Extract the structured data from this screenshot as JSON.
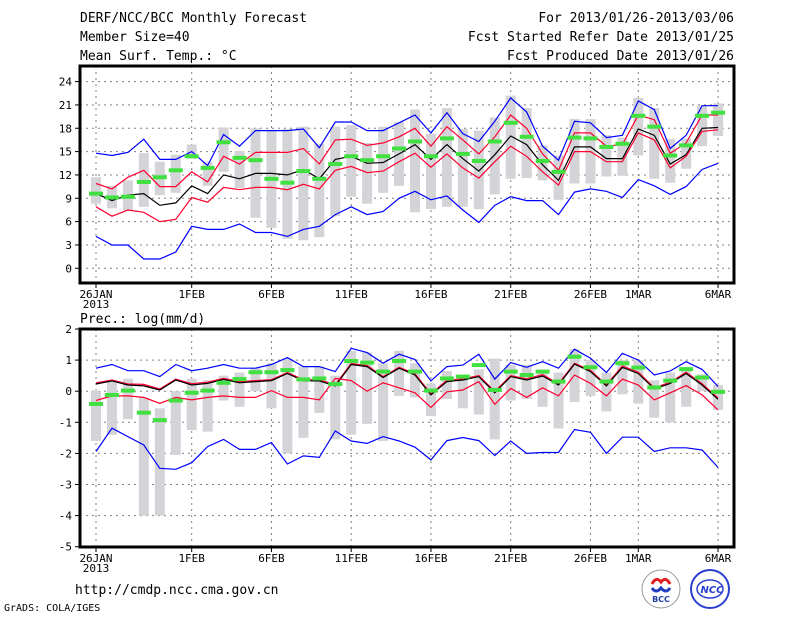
{
  "header": {
    "title": "DERF/NCC/BCC Monthly Forecast",
    "member_size": "Member Size=40",
    "variable": "Mean Surf. Temp.: °C",
    "period": "For 2013/01/26-2013/03/06",
    "refer_date": "Fcst Started Refer Date 2013/01/25",
    "produced_date": "Fcst Produced Date 2013/01/26"
  },
  "footer": {
    "url": "http://cmdp.ncc.cma.gov.cn",
    "credit": "GrADS: COLA/IGES",
    "logos": [
      "BCC",
      "NCC"
    ]
  },
  "colors": {
    "max_min": "#0000ff",
    "spread": "#ff0030",
    "mean": "#000000",
    "median": "#40e040",
    "box": "#d4d4d8",
    "grid": "#808080"
  },
  "chart_data": [
    {
      "type": "line",
      "title": "Mean Surf. Temp.: °C",
      "x_start": "2013-01-26",
      "x_tick_labels": [
        {
          "day": 0,
          "label": "26JAN",
          "sub": "2013"
        },
        {
          "day": 6,
          "label": "1FEB"
        },
        {
          "day": 11,
          "label": "6FEB"
        },
        {
          "day": 16,
          "label": "11FEB"
        },
        {
          "day": 21,
          "label": "16FEB"
        },
        {
          "day": 26,
          "label": "21FEB"
        },
        {
          "day": 31,
          "label": "26FEB"
        },
        {
          "day": 34,
          "label": "1MAR"
        },
        {
          "day": 39,
          "label": "6MAR"
        }
      ],
      "ylim": [
        -2,
        26
      ],
      "y_ticks": [
        0,
        3,
        6,
        9,
        12,
        15,
        18,
        21,
        24
      ],
      "grid": true,
      "series": [
        {
          "name": "max",
          "color": "#0000ff",
          "values": [
            14.8,
            14.5,
            14.9,
            16.6,
            14.0,
            14.0,
            15.0,
            13.2,
            17.2,
            15.7,
            17.7,
            17.7,
            17.7,
            17.9,
            15.5,
            18.8,
            18.8,
            17.7,
            17.7,
            18.7,
            19.7,
            17.4,
            20.0,
            17.3,
            16.3,
            18.9,
            21.9,
            20.1,
            15.7,
            13.9,
            18.9,
            18.7,
            16.8,
            17.1,
            21.5,
            20.4,
            15.4,
            17.1,
            20.9,
            20.9
          ]
        },
        {
          "name": "upper",
          "color": "#ff0030",
          "values": [
            10.9,
            10.2,
            11.7,
            12.6,
            10.5,
            10.5,
            12.4,
            11.1,
            14.4,
            13.4,
            14.9,
            14.9,
            14.9,
            15.4,
            13.4,
            16.5,
            16.6,
            15.8,
            16.1,
            16.9,
            18.0,
            15.7,
            18.2,
            16.5,
            14.7,
            16.9,
            19.7,
            18.0,
            14.7,
            12.6,
            17.4,
            17.4,
            15.7,
            15.9,
            19.7,
            19.1,
            14.8,
            16.1,
            19.7,
            19.7
          ]
        },
        {
          "name": "mean",
          "color": "#000000",
          "values": [
            9.6,
            8.7,
            9.4,
            9.6,
            8.1,
            8.4,
            10.6,
            9.6,
            12.0,
            11.5,
            12.2,
            12.2,
            12.0,
            12.7,
            11.5,
            14.0,
            14.4,
            13.5,
            13.6,
            14.7,
            15.9,
            14.0,
            15.9,
            14.1,
            12.5,
            14.6,
            17.0,
            15.9,
            13.3,
            11.3,
            15.6,
            15.6,
            14.1,
            14.1,
            17.9,
            17.1,
            13.4,
            14.6,
            18.0,
            18.1
          ]
        },
        {
          "name": "lower",
          "color": "#ff0030",
          "values": [
            7.9,
            6.7,
            7.5,
            7.2,
            6.0,
            6.3,
            9.1,
            8.5,
            10.4,
            10.1,
            10.4,
            10.4,
            10.1,
            10.8,
            10.2,
            12.6,
            13.1,
            12.3,
            12.5,
            13.7,
            14.8,
            13.0,
            14.7,
            12.9,
            11.6,
            13.7,
            15.7,
            14.4,
            12.4,
            10.7,
            15.0,
            15.0,
            13.7,
            13.7,
            17.4,
            16.5,
            12.9,
            14.4,
            17.6,
            17.8
          ]
        },
        {
          "name": "min",
          "color": "#0000ff",
          "values": [
            4.1,
            3.0,
            3.0,
            1.2,
            1.2,
            2.1,
            5.4,
            5.0,
            5.0,
            5.7,
            4.6,
            4.6,
            4.1,
            5.0,
            5.4,
            6.9,
            7.9,
            6.9,
            7.3,
            9.0,
            9.9,
            8.8,
            9.3,
            7.5,
            5.9,
            8.1,
            9.2,
            8.7,
            8.7,
            6.9,
            9.8,
            10.2,
            9.9,
            9.1,
            11.4,
            10.6,
            9.5,
            10.5,
            12.7,
            13.5
          ]
        },
        {
          "name": "median",
          "color": "#40e040",
          "values": [
            9.6,
            9.1,
            9.2,
            11.1,
            11.7,
            12.6,
            14.4,
            12.9,
            16.2,
            14.2,
            13.9,
            11.5,
            11.0,
            12.5,
            11.5,
            13.4,
            14.4,
            13.9,
            14.4,
            15.4,
            16.3,
            14.4,
            16.7,
            14.7,
            13.8,
            16.3,
            18.7,
            16.9,
            13.8,
            12.4,
            16.8,
            16.7,
            15.6,
            16.0,
            19.6,
            18.2,
            14.5,
            15.8,
            19.6,
            20.0
          ]
        }
      ],
      "box_low": [
        8.3,
        7.7,
        7.4,
        7.9,
        9.4,
        9.7,
        14.1,
        10.6,
        12.4,
        10.3,
        6.5,
        5.2,
        3.8,
        3.6,
        4.0,
        6.7,
        9.2,
        8.3,
        9.7,
        10.6,
        7.2,
        7.6,
        7.9,
        7.9,
        7.6,
        9.5,
        11.5,
        11.6,
        11.3,
        8.8,
        10.9,
        10.9,
        11.8,
        11.9,
        14.5,
        11.5,
        11.0,
        12.8,
        15.7,
        17.0
      ],
      "box_high": [
        11.7,
        10.6,
        11.3,
        14.8,
        13.7,
        14.6,
        15.9,
        13.7,
        18.1,
        15.1,
        18.0,
        17.8,
        17.9,
        18.2,
        16.0,
        18.2,
        18.4,
        16.1,
        18.2,
        18.8,
        20.4,
        17.3,
        20.6,
        17.9,
        17.7,
        19.4,
        22.2,
        20.6,
        15.8,
        14.5,
        19.2,
        19.2,
        17.1,
        16.8,
        21.9,
        20.6,
        16.6,
        16.7,
        20.9,
        21.2
      ]
    },
    {
      "type": "line",
      "title": "Prec.: log(mm/d)",
      "x_start": "2013-01-26",
      "x_tick_labels": [
        {
          "day": 0,
          "label": "26JAN",
          "sub": "2013"
        },
        {
          "day": 6,
          "label": "1FEB"
        },
        {
          "day": 11,
          "label": "6FEB"
        },
        {
          "day": 16,
          "label": "11FEB"
        },
        {
          "day": 21,
          "label": "16FEB"
        },
        {
          "day": 26,
          "label": "21FEB"
        },
        {
          "day": 31,
          "label": "26FEB"
        },
        {
          "day": 34,
          "label": "1MAR"
        },
        {
          "day": 39,
          "label": "6MAR"
        }
      ],
      "ylim": [
        -5,
        2
      ],
      "y_ticks": [
        -5,
        -4,
        -3,
        -2,
        -1,
        0,
        1,
        2
      ],
      "grid": true,
      "series": [
        {
          "name": "max",
          "color": "#0000ff",
          "values": [
            0.74,
            0.86,
            0.66,
            0.66,
            0.47,
            0.86,
            0.66,
            0.74,
            0.86,
            0.74,
            0.74,
            0.86,
            1.08,
            0.79,
            0.79,
            0.63,
            1.38,
            1.24,
            0.9,
            1.19,
            1.02,
            0.33,
            0.79,
            0.84,
            1.19,
            0.39,
            0.92,
            0.77,
            0.95,
            0.74,
            1.35,
            1.06,
            0.6,
            1.22,
            1.0,
            0.52,
            0.65,
            0.95,
            0.7,
            0.15
          ]
        },
        {
          "name": "upper",
          "color": "#ff0030",
          "values": [
            0.27,
            0.36,
            0.23,
            0.22,
            0.07,
            0.39,
            0.24,
            0.29,
            0.41,
            0.31,
            0.34,
            0.37,
            0.6,
            0.37,
            0.37,
            0.21,
            0.89,
            0.83,
            0.47,
            0.77,
            0.56,
            -0.08,
            0.35,
            0.4,
            0.5,
            -0.01,
            0.5,
            0.4,
            0.53,
            0.24,
            0.9,
            0.67,
            0.21,
            0.81,
            0.61,
            0.11,
            0.29,
            0.61,
            0.24,
            -0.22
          ]
        },
        {
          "name": "mean",
          "color": "#000000",
          "values": [
            0.23,
            0.33,
            0.2,
            0.17,
            0.04,
            0.36,
            0.2,
            0.25,
            0.38,
            0.27,
            0.31,
            0.34,
            0.57,
            0.33,
            0.33,
            0.17,
            0.86,
            0.79,
            0.44,
            0.74,
            0.52,
            -0.12,
            0.31,
            0.36,
            0.47,
            -0.05,
            0.47,
            0.36,
            0.49,
            0.2,
            0.87,
            0.63,
            0.17,
            0.77,
            0.57,
            0.07,
            0.25,
            0.57,
            0.2,
            -0.26
          ]
        },
        {
          "name": "lower",
          "color": "#ff0030",
          "values": [
            -0.3,
            -0.15,
            -0.15,
            -0.2,
            -0.39,
            -0.2,
            -0.28,
            -0.2,
            -0.15,
            -0.2,
            -0.2,
            0.02,
            -0.2,
            -0.2,
            -0.28,
            0.41,
            0.34,
            0.0,
            0.27,
            0.11,
            -0.05,
            -0.52,
            -0.02,
            0.04,
            0.31,
            -0.42,
            0.09,
            -0.2,
            0.11,
            -0.15,
            0.52,
            0.25,
            -0.15,
            0.39,
            0.2,
            -0.28,
            -0.05,
            0.18,
            -0.12,
            -0.6
          ]
        },
        {
          "name": "min",
          "color": "#0000ff",
          "values": [
            -1.94,
            -1.19,
            -1.46,
            -1.73,
            -2.48,
            -2.51,
            -2.3,
            -1.78,
            -1.55,
            -1.87,
            -1.87,
            -1.65,
            -2.34,
            -2.08,
            -2.13,
            -1.28,
            -1.6,
            -1.68,
            -1.46,
            -1.6,
            -1.8,
            -2.21,
            -1.59,
            -1.49,
            -1.59,
            -2.07,
            -1.6,
            -2.0,
            -1.97,
            -1.97,
            -1.23,
            -1.32,
            -2.0,
            -1.48,
            -1.48,
            -1.94,
            -1.82,
            -1.82,
            -1.89,
            -2.45
          ]
        },
        {
          "name": "median",
          "color": "#40e040",
          "values": [
            -0.41,
            -0.12,
            0.02,
            -0.69,
            -0.93,
            -0.3,
            -0.05,
            0.02,
            0.27,
            0.39,
            0.61,
            0.61,
            0.68,
            0.38,
            0.41,
            0.23,
            0.97,
            0.92,
            0.63,
            0.97,
            0.63,
            0.02,
            0.41,
            0.47,
            0.84,
            0.04,
            0.63,
            0.52,
            0.63,
            0.31,
            1.11,
            0.77,
            0.31,
            0.9,
            0.76,
            0.12,
            0.34,
            0.71,
            0.44,
            -0.02
          ]
        }
      ],
      "box_low": [
        -1.6,
        -1.4,
        -0.9,
        -4.0,
        -4.0,
        -2.05,
        -1.25,
        -1.3,
        -0.3,
        -0.5,
        0.0,
        -0.55,
        -2.0,
        -1.5,
        -0.7,
        -1.55,
        -1.4,
        -1.05,
        -1.6,
        -0.15,
        -0.2,
        -0.8,
        -0.25,
        -0.55,
        -0.75,
        -1.55,
        -0.3,
        -0.25,
        -0.5,
        -1.2,
        -0.35,
        -0.15,
        -0.65,
        -0.1,
        -0.4,
        -0.85,
        -1.0,
        -0.5,
        0.0,
        -0.6
      ],
      "box_high": [
        0.0,
        0.3,
        0.4,
        -0.2,
        -0.55,
        0.0,
        0.4,
        0.35,
        0.5,
        0.6,
        0.75,
        0.9,
        1.05,
        0.8,
        0.8,
        0.5,
        1.3,
        1.25,
        0.9,
        1.3,
        0.9,
        0.25,
        0.65,
        0.45,
        0.7,
        1.05,
        0.85,
        0.85,
        0.65,
        0.6,
        1.35,
        1.0,
        0.6,
        1.0,
        1.0,
        0.35,
        0.6,
        0.7,
        0.55,
        0.2
      ]
    }
  ]
}
